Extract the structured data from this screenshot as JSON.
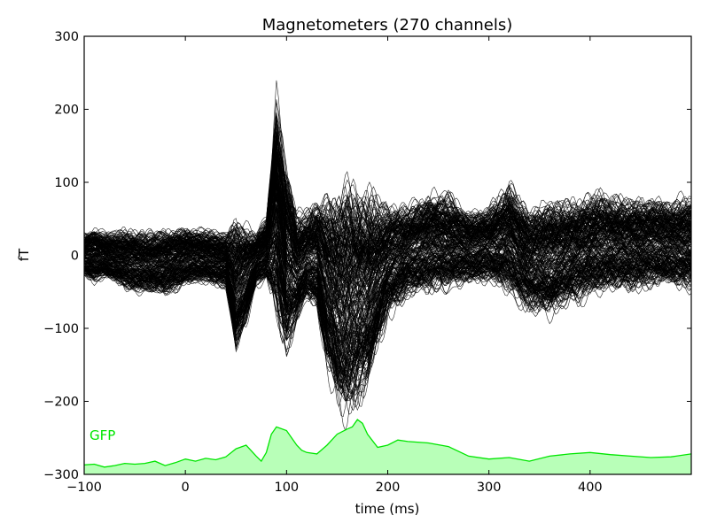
{
  "chart_data": {
    "type": "line",
    "title": "Magnetometers (270 channels)",
    "xlabel": "time (ms)",
    "ylabel": "fT",
    "xlim": [
      -100,
      500
    ],
    "ylim": [
      -300,
      300
    ],
    "xticks": [
      -100,
      0,
      100,
      200,
      300,
      400
    ],
    "xtick_labels": [
      "−100",
      "0",
      "100",
      "200",
      "300",
      "400"
    ],
    "yticks": [
      -300,
      -200,
      -100,
      0,
      100,
      200,
      300
    ],
    "ytick_labels": [
      "−300",
      "−200",
      "−100",
      "0",
      "100",
      "200",
      "300"
    ],
    "grid": false,
    "n_channels": 270,
    "channel_color": "#000000",
    "channel_envelope": {
      "x": [
        -100,
        -90,
        -80,
        -60,
        -40,
        -20,
        0,
        20,
        40,
        50,
        60,
        70,
        80,
        90,
        100,
        110,
        120,
        130,
        140,
        150,
        160,
        170,
        180,
        190,
        200,
        220,
        240,
        260,
        280,
        300,
        320,
        340,
        360,
        380,
        400,
        420,
        440,
        460,
        480,
        500
      ],
      "upper": [
        35,
        45,
        40,
        42,
        40,
        45,
        45,
        42,
        40,
        65,
        55,
        40,
        60,
        245,
        150,
        70,
        75,
        90,
        105,
        115,
        130,
        125,
        115,
        95,
        85,
        80,
        100,
        95,
        70,
        75,
        115,
        75,
        90,
        90,
        95,
        95,
        90,
        90,
        85,
        95
      ],
      "lower": [
        -35,
        -45,
        -40,
        -55,
        -60,
        -65,
        -50,
        -45,
        -55,
        -155,
        -110,
        -50,
        -45,
        -115,
        -160,
        -110,
        -80,
        -90,
        -180,
        -235,
        -255,
        -240,
        -210,
        -150,
        -100,
        -70,
        -65,
        -60,
        -50,
        -45,
        -70,
        -90,
        -100,
        -80,
        -70,
        -65,
        -60,
        -55,
        -55,
        -60
      ]
    },
    "series": [
      {
        "name": "GFP",
        "color": "#00e600",
        "fill": "#b8ffb8",
        "x": [
          -100,
          -90,
          -80,
          -70,
          -60,
          -50,
          -40,
          -30,
          -20,
          -10,
          0,
          10,
          20,
          30,
          40,
          50,
          60,
          70,
          75,
          80,
          85,
          90,
          100,
          110,
          115,
          120,
          130,
          140,
          150,
          160,
          165,
          170,
          175,
          180,
          190,
          200,
          210,
          220,
          240,
          260,
          280,
          300,
          320,
          340,
          360,
          380,
          400,
          420,
          440,
          460,
          480,
          500
        ],
        "values": [
          13,
          14,
          10,
          12,
          15,
          14,
          15,
          18,
          12,
          16,
          21,
          18,
          22,
          20,
          24,
          35,
          40,
          25,
          18,
          30,
          55,
          65,
          60,
          40,
          33,
          30,
          28,
          40,
          55,
          62,
          65,
          75,
          70,
          55,
          37,
          40,
          47,
          45,
          43,
          38,
          25,
          21,
          23,
          18,
          25,
          28,
          30,
          27,
          25,
          23,
          24,
          28
        ]
      }
    ]
  }
}
